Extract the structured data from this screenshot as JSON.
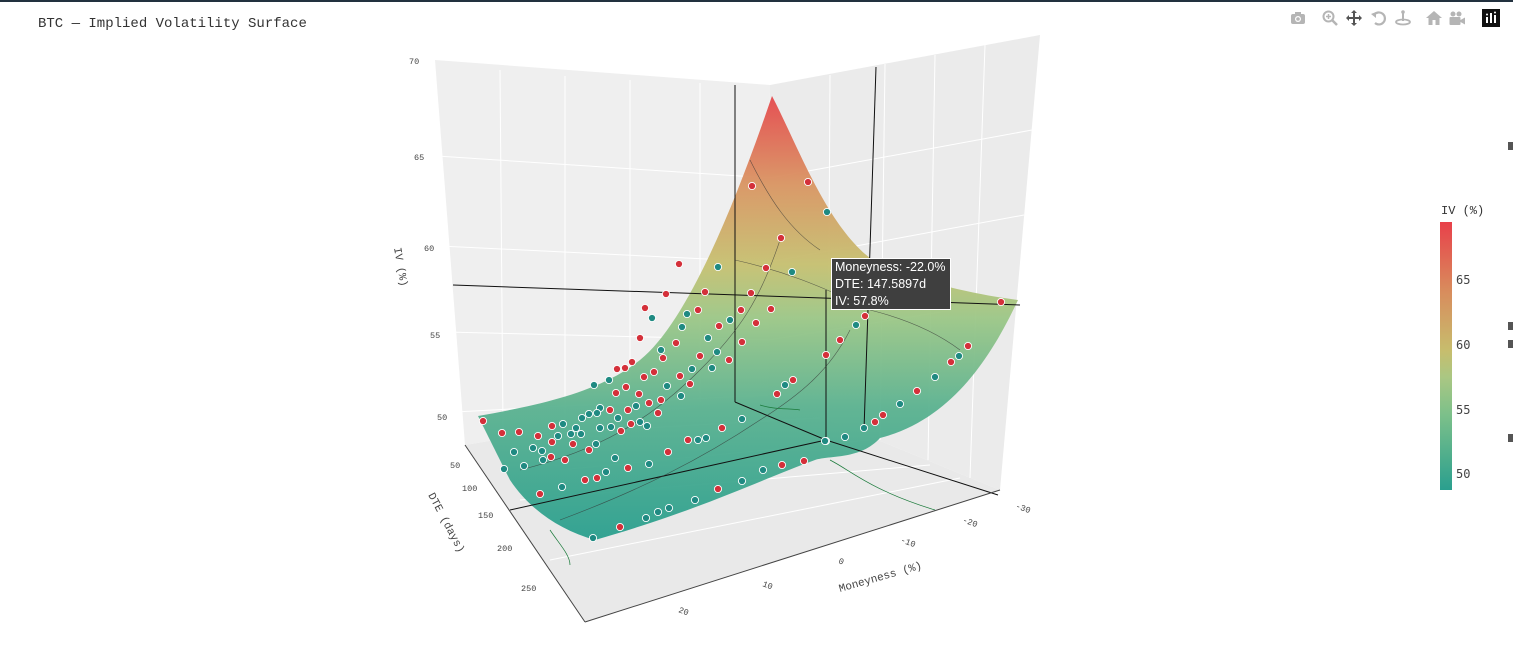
{
  "title": "BTC — Implied Volatility Surface",
  "modebar": {
    "buttons": [
      "camera-icon",
      "zoom-icon",
      "pan-icon",
      "orbit-icon",
      "turntable-icon",
      "home-icon",
      "video-icon",
      "plotly-logo-icon"
    ]
  },
  "tooltip": {
    "line1": "Moneyness: -22.0%",
    "line2": "DTE: 147.5897d",
    "line3": "IV: 57.8%"
  },
  "colorbar": {
    "title": "IV (%)",
    "ticks": [
      "65",
      "60",
      "55",
      "50"
    ],
    "colorscale": [
      "#2a9f8e",
      "#7cc08a",
      "#c7bd6d",
      "#d98a5c",
      "#e8404a"
    ]
  },
  "colors": {
    "call_point": "#d4303a",
    "put_point": "#1f8a82",
    "accent": "#e8404a"
  },
  "chart_data": {
    "type": "surface",
    "xlabel": "Moneyness (%)",
    "ylabel": "DTE (days)",
    "zlabel": "IV (%)",
    "x_ticks": [
      "-30",
      "-20",
      "-10",
      "0",
      "10",
      "20"
    ],
    "y_ticks": [
      "50",
      "100",
      "150",
      "200",
      "250"
    ],
    "z_ticks": [
      "70",
      "65",
      "60",
      "55",
      "50"
    ],
    "xlim": [
      -30,
      25
    ],
    "ylim": [
      20,
      290
    ],
    "zlim": [
      47,
      70
    ],
    "colorscale_range": [
      49,
      69
    ],
    "surface_peak": {
      "moneyness": 20,
      "dte": 20,
      "iv": 69
    },
    "hover_point": {
      "moneyness": -22.0,
      "dte": 147.5897,
      "iv": 57.8
    },
    "markers": "red = calls, teal = puts"
  }
}
